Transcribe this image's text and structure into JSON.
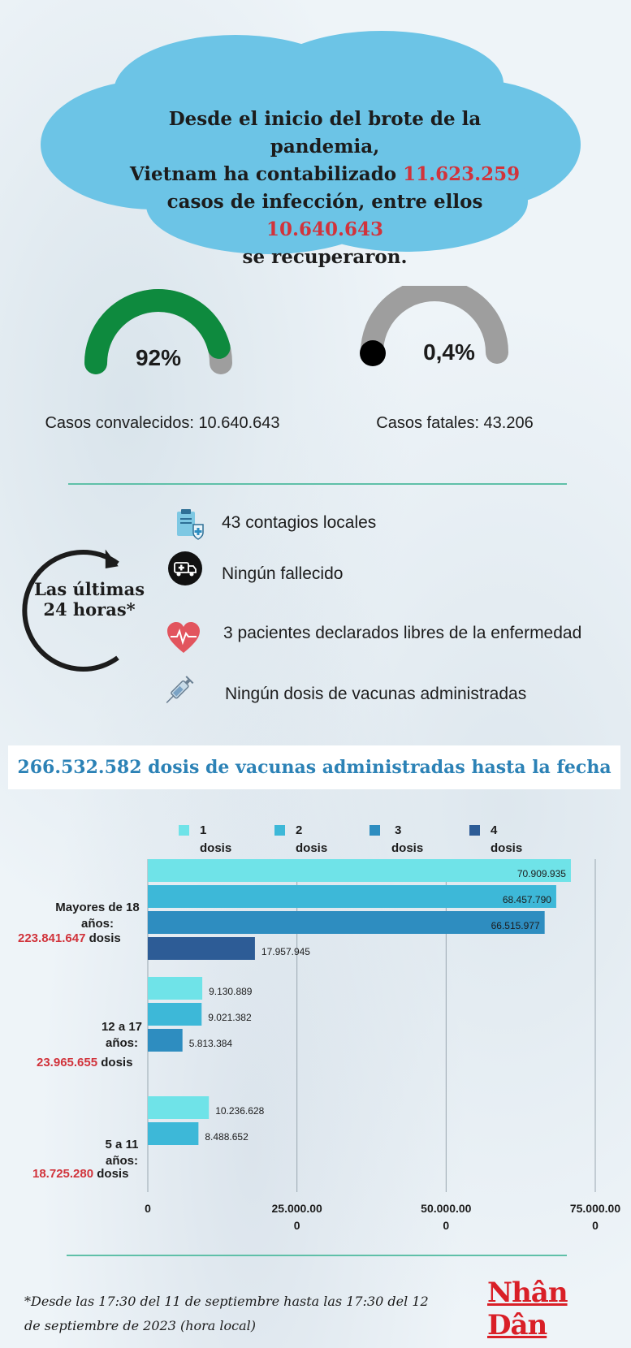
{
  "header": {
    "line1": "Desde el inicio del brote de la pandemia,",
    "line2_prefix": "Vietnam ha contabilizado ",
    "line2_value": "11.623.259",
    "line3_prefix": "casos de infección, entre ellos ",
    "line3_value": "10.640.643",
    "line4": "se recuperaron."
  },
  "gauges": {
    "recovered": {
      "percent_label": "92%",
      "fraction": 0.92,
      "label": "Casos convalecidos: 10.640.643",
      "color": "#0e8a3e"
    },
    "deaths": {
      "percent_label": "0,4%",
      "fraction": 0.004,
      "label": "Casos fatales: 43.206",
      "color": "#000000"
    }
  },
  "last24": {
    "title": "Las últimas 24 horas*",
    "items": [
      {
        "icon": "clipboard-medical-icon",
        "text": "43 contagios locales"
      },
      {
        "icon": "ambulance-icon",
        "text": "Ningún fallecido"
      },
      {
        "icon": "heart-pulse-icon",
        "text": "3 pacientes declarados libres de la enfermedad"
      },
      {
        "icon": "syringe-icon",
        "text": "Ningún dosis de vacunas administradas"
      }
    ]
  },
  "vaccine_total": "266.532.582 dosis de vacunas administradas hasta la fecha",
  "groups": [
    {
      "name_line1": "Mayores de 18",
      "name_line2": "años:",
      "total": "223.841.647",
      "unit": "dosis"
    },
    {
      "name_line1": "12 a 17",
      "name_line2": "años:",
      "total": "23.965.655",
      "unit": "dosis"
    },
    {
      "name_line1": "5 a 11",
      "name_line2": "años:",
      "total": "18.725.280",
      "unit": "dosis"
    }
  ],
  "chart_data": {
    "type": "bar",
    "orientation": "horizontal",
    "categories": [
      "Mayores de 18 años",
      "12 a 17 años",
      "5 a 11 años"
    ],
    "series": [
      {
        "name": "1 dosis",
        "color": "#6fe3e8",
        "values": [
          70909935,
          9130889,
          10236628
        ],
        "labels": [
          "70.909.935",
          "9.130.889",
          "10.236.628"
        ]
      },
      {
        "name": "2 dosis",
        "color": "#3db8d8",
        "values": [
          68457790,
          9021382,
          8488652
        ],
        "labels": [
          "68.457.790",
          "9.021.382",
          "8.488.652"
        ]
      },
      {
        "name": "3 dosis",
        "color": "#2e8dc0",
        "values": [
          66515977,
          5813384,
          null
        ],
        "labels": [
          "66.515.977",
          "5.813.384",
          ""
        ]
      },
      {
        "name": "4 dosis",
        "color": "#2d5c96",
        "values": [
          17957945,
          null,
          null
        ],
        "labels": [
          "17.957.945",
          "",
          ""
        ]
      }
    ],
    "legend": [
      {
        "num": "1",
        "word": "dosis"
      },
      {
        "num": "2",
        "word": "dosis"
      },
      {
        "num": "3",
        "word": "dosis"
      },
      {
        "num": "4",
        "word": "dosis"
      }
    ],
    "xlim": [
      0,
      75000000
    ],
    "x_ticks": [
      {
        "value": 0,
        "line1": "0",
        "line2": ""
      },
      {
        "value": 25000000,
        "line1": "25.000.00",
        "line2": "0"
      },
      {
        "value": 50000000,
        "line1": "50.000.00",
        "line2": "0"
      },
      {
        "value": 75000000,
        "line1": "75.000.00",
        "line2": "0"
      }
    ],
    "grid": true,
    "legend_position": "top"
  },
  "footnote": "*Desde las 17:30 del 11 de septiembre hasta las 17:30 del 12 de septiembre de 2023 (hora local)",
  "brand": "Nhân Dân"
}
